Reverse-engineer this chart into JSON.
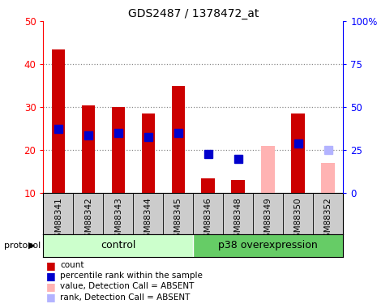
{
  "title": "GDS2487 / 1378472_at",
  "categories": [
    "GSM88341",
    "GSM88342",
    "GSM88343",
    "GSM88344",
    "GSM88345",
    "GSM88346",
    "GSM88348",
    "GSM88349",
    "GSM88350",
    "GSM88352"
  ],
  "bar_values": [
    43.5,
    30.5,
    30.0,
    28.5,
    35.0,
    13.5,
    13.0,
    null,
    28.5,
    null
  ],
  "bar_absent_values": [
    null,
    null,
    null,
    null,
    null,
    null,
    null,
    21.0,
    null,
    17.0
  ],
  "rank_values": [
    25.0,
    23.5,
    24.0,
    23.0,
    24.0,
    19.0,
    18.0,
    null,
    21.5,
    null
  ],
  "rank_absent_values": [
    null,
    null,
    null,
    null,
    null,
    null,
    null,
    null,
    null,
    20.0
  ],
  "bar_color": "#cc0000",
  "bar_absent_color": "#ffb3b3",
  "rank_color": "#0000cc",
  "rank_absent_color": "#b3b3ff",
  "ylim_left": [
    10,
    50
  ],
  "ylim_right": [
    0,
    100
  ],
  "yticks_left": [
    10,
    20,
    30,
    40,
    50
  ],
  "yticks_right": [
    0,
    25,
    50,
    75,
    100
  ],
  "ytick_labels_right": [
    "0",
    "25",
    "50",
    "75",
    "100%"
  ],
  "control_indices": [
    0,
    1,
    2,
    3,
    4
  ],
  "overexp_indices": [
    5,
    6,
    7,
    8,
    9
  ],
  "control_label": "control",
  "overexp_label": "p38 overexpression",
  "protocol_label": "protocol",
  "control_bg": "#ccffcc",
  "overexp_bg": "#66cc66",
  "xtick_bg": "#cccccc",
  "legend_items": [
    {
      "label": "count",
      "color": "#cc0000"
    },
    {
      "label": "percentile rank within the sample",
      "color": "#0000cc"
    },
    {
      "label": "value, Detection Call = ABSENT",
      "color": "#ffb3b3"
    },
    {
      "label": "rank, Detection Call = ABSENT",
      "color": "#b3b3ff"
    }
  ],
  "bar_width": 0.45,
  "rank_marker_size": 7,
  "grid_color": "#888888",
  "figure_bg": "#ffffff"
}
